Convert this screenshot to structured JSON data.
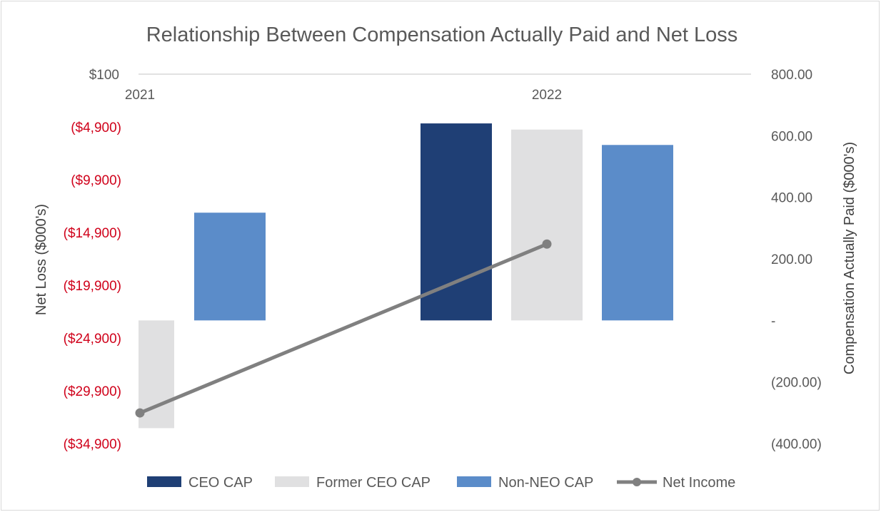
{
  "chart_data": {
    "type": "bar",
    "title": "Relationship Between Compensation Actually Paid and Net Loss",
    "categories": [
      "2021",
      "2022"
    ],
    "series": [
      {
        "name": "CEO CAP",
        "axis": "right",
        "color": "#1f3f75",
        "values": [
          null,
          640
        ]
      },
      {
        "name": "Former CEO CAP",
        "axis": "right",
        "color": "#e0e0e1",
        "values": [
          -350,
          620
        ]
      },
      {
        "name": "Non-NEO CAP",
        "axis": "right",
        "color": "#5b8cc9",
        "values": [
          350,
          570
        ]
      },
      {
        "name": "Net Income",
        "axis": "left",
        "type": "line",
        "color": "#808080",
        "values": [
          -32000,
          -16000
        ]
      }
    ],
    "left_axis": {
      "label": "Net Loss ($000's)",
      "range": [
        -34900,
        100
      ],
      "ticks": [
        {
          "value": 100,
          "label": "$100"
        },
        {
          "value": -4900,
          "label": "($4,900)"
        },
        {
          "value": -9900,
          "label": "($9,900)"
        },
        {
          "value": -14900,
          "label": "($14,900)"
        },
        {
          "value": -19900,
          "label": "($19,900)"
        },
        {
          "value": -24900,
          "label": "($24,900)"
        },
        {
          "value": -29900,
          "label": "($29,900)"
        },
        {
          "value": -34900,
          "label": "($34,900)"
        }
      ]
    },
    "right_axis": {
      "label": "Compensation Actually Paid ($000's)",
      "range": [
        -400,
        800
      ],
      "ticks": [
        {
          "value": 800,
          "label": "800.00"
        },
        {
          "value": 600,
          "label": "600.00"
        },
        {
          "value": 400,
          "label": "400.00"
        },
        {
          "value": 200,
          "label": "200.00"
        },
        {
          "value": 0,
          "label": "-"
        },
        {
          "value": -200,
          "label": "(200.00)"
        },
        {
          "value": -400,
          "label": "(400.00)"
        }
      ]
    },
    "legend": [
      "CEO CAP",
      "Former CEO CAP",
      "Non-NEO CAP",
      "Net Income"
    ],
    "legend_position": "bottom",
    "grid": false
  }
}
